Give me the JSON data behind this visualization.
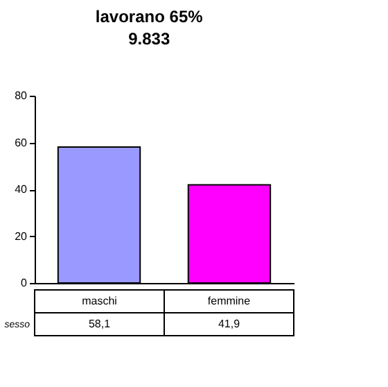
{
  "chart_data": {
    "type": "bar",
    "title": "lavorano 65%",
    "subtitle": "9.833",
    "categories": [
      "maschi",
      "femmine"
    ],
    "colors": [
      "#9999ff",
      "#ff00ff"
    ],
    "series": [
      {
        "name": "sesso",
        "values": [
          58.1,
          41.9
        ],
        "value_labels": [
          "58,1",
          "41,9"
        ]
      }
    ],
    "ylim": [
      0,
      80
    ],
    "yticks": [
      0,
      20,
      40,
      60,
      80
    ],
    "grid": false
  }
}
